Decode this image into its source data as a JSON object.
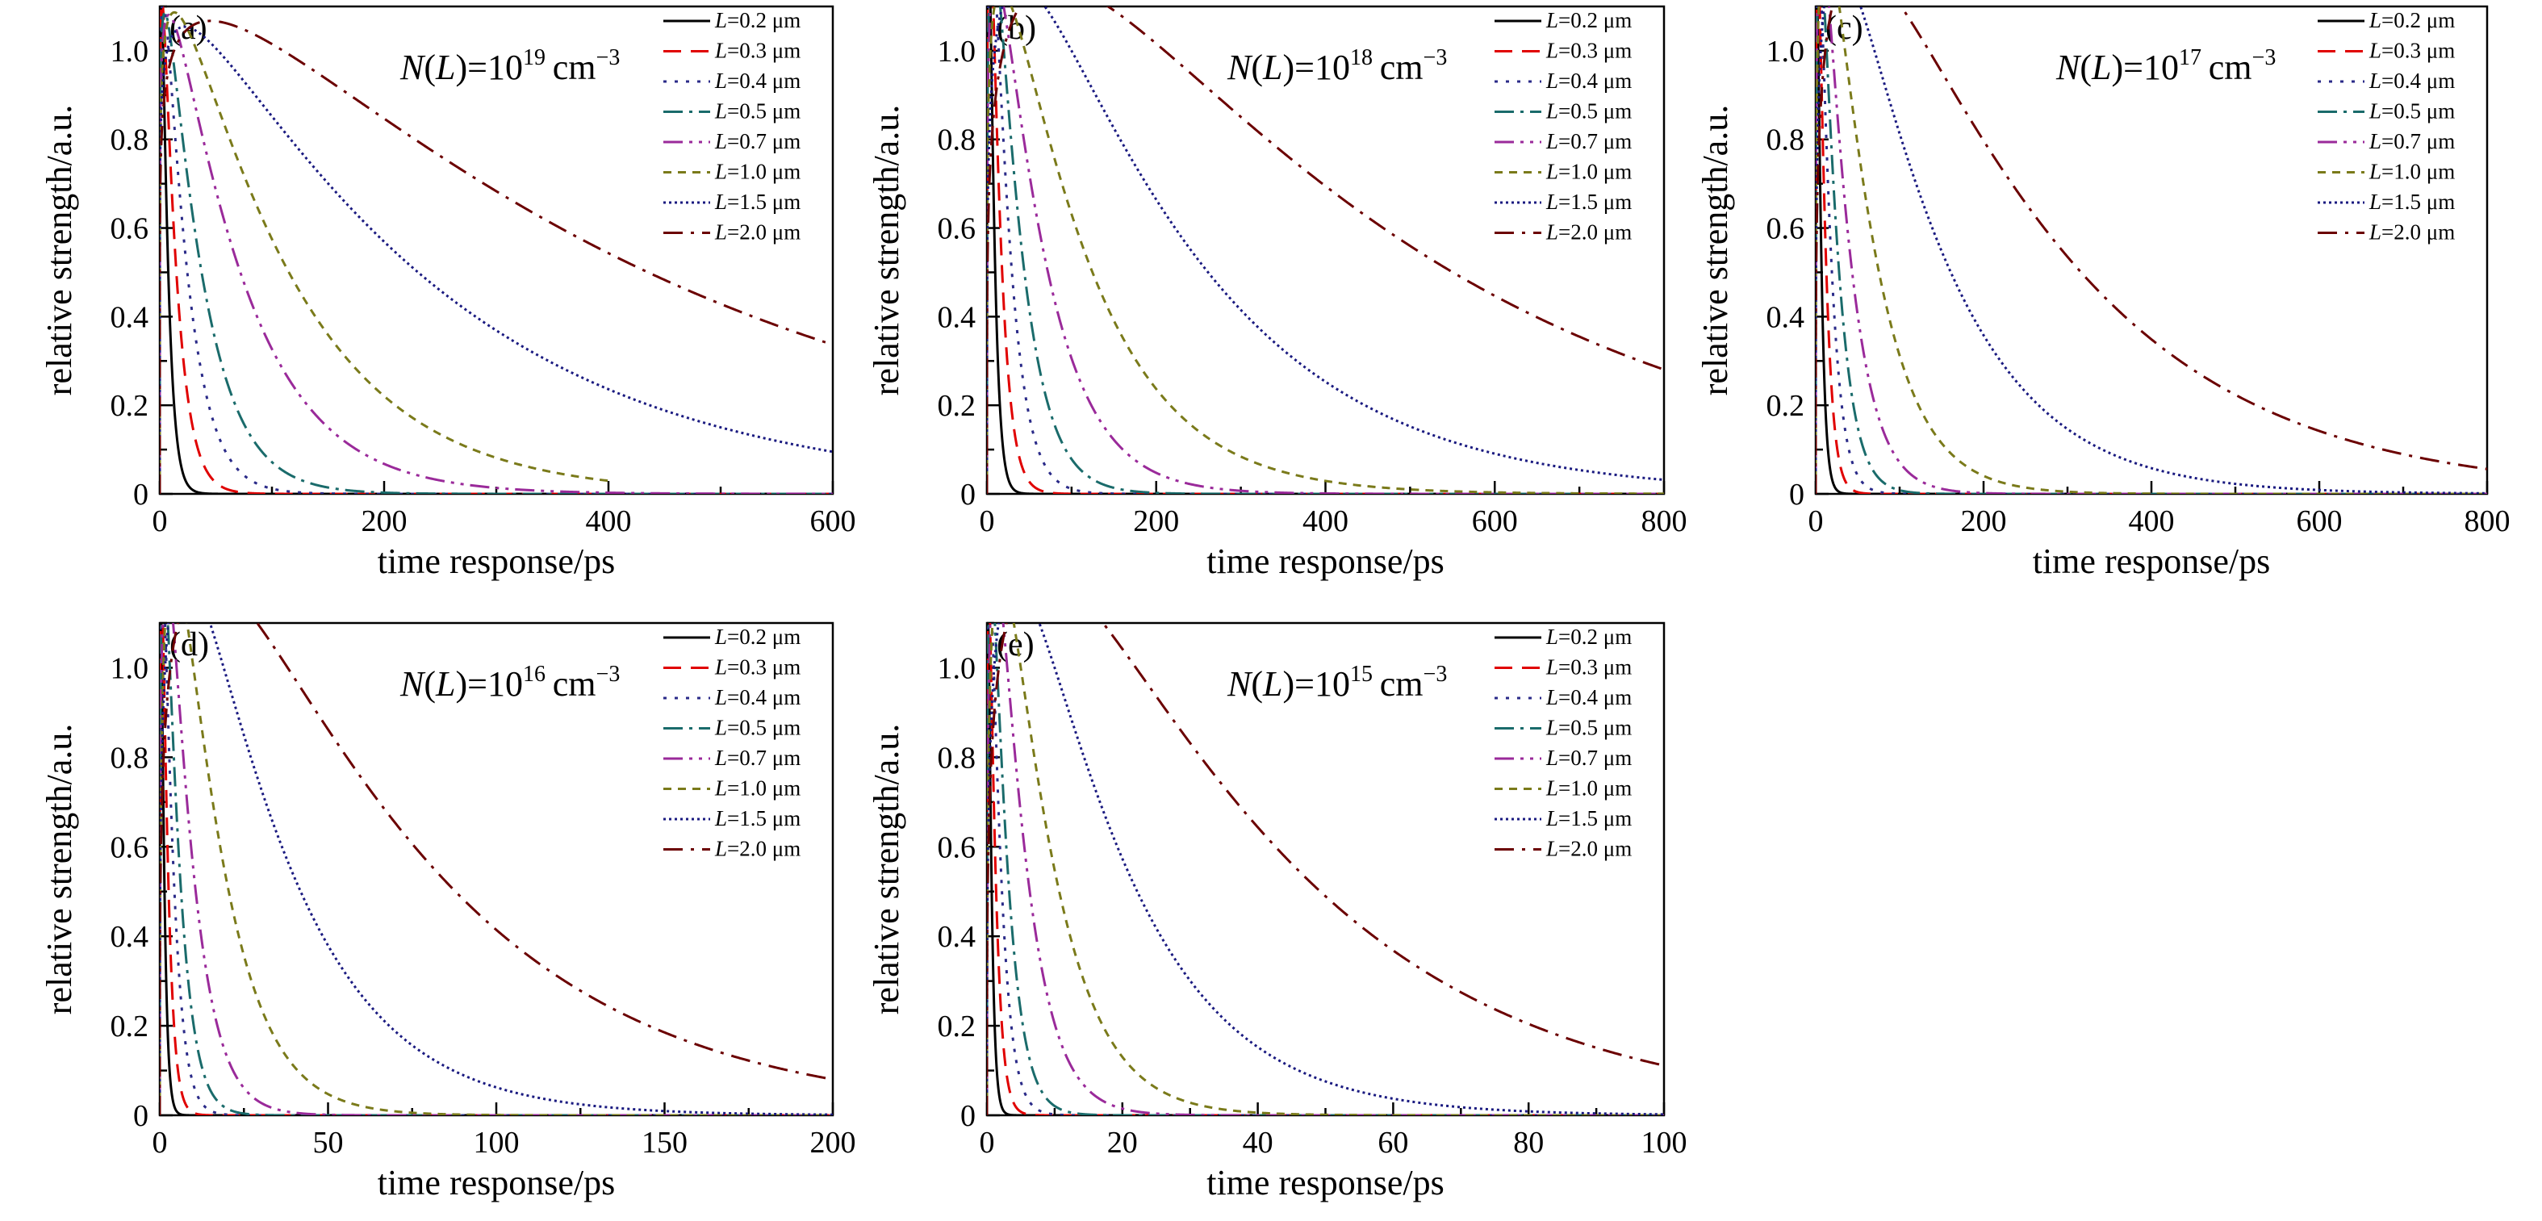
{
  "styles": [
    {
      "color": "#000000",
      "dash": ""
    },
    {
      "color": "#e00000",
      "dash": "22 12"
    },
    {
      "color": "#2a2a88",
      "dash": "4 10"
    },
    {
      "color": "#1a6b6b",
      "dash": "24 8 4 8"
    },
    {
      "color": "#9a2a9a",
      "dash": "24 8 4 8 4 8"
    },
    {
      "color": "#7a7a1a",
      "dash": "10 8"
    },
    {
      "color": "#1a1a80",
      "dash": "3 4"
    },
    {
      "color": "#6b0000",
      "dash": "24 10 4 10"
    }
  ],
  "chart_data": [
    {
      "type": "line",
      "panel_label": "(a)",
      "annotation": {
        "pre": "N",
        "open": "(",
        "mid": "L",
        "close": ")=10",
        "sup": "19",
        "post": "cm",
        "unit_sup": "−3"
      },
      "xlabel": "time response/ps",
      "ylabel": "relative strength/a.u.",
      "xlim": [
        0,
        600
      ],
      "ylim": [
        0,
        1.1
      ],
      "xticks": [
        "0",
        "200",
        "400",
        "600"
      ],
      "yticks": [
        "0",
        "0.2",
        "0.4",
        "0.6",
        "0.8",
        "1.0"
      ],
      "series": [
        {
          "name": "L=0.2 μm",
          "peak": 3,
          "tau_rise": 1.2,
          "tau_decay": 5,
          "x_end": 600
        },
        {
          "name": "L=0.3 μm",
          "peak": 5,
          "tau_rise": 2.0,
          "tau_decay": 11,
          "x_end": 600
        },
        {
          "name": "L=0.4 μm",
          "peak": 8,
          "tau_rise": 3.0,
          "tau_decay": 19,
          "x_end": 600
        },
        {
          "name": "L=0.5 μm",
          "peak": 11,
          "tau_rise": 4.5,
          "tau_decay": 30,
          "x_end": 600
        },
        {
          "name": "L=0.7 μm",
          "peak": 20,
          "tau_rise": 8,
          "tau_decay": 60,
          "x_end": 600
        },
        {
          "name": "L=1.0 μm",
          "peak": 33,
          "tau_rise": 13,
          "tau_decay": 95,
          "x_end": 400
        },
        {
          "name": "L=1.5 μm",
          "peak": 52,
          "tau_rise": 22,
          "tau_decay": 210,
          "x_end": 600
        },
        {
          "name": "L=2.0 μm",
          "peak": 110,
          "tau_rise": 45,
          "tau_decay": 380,
          "x_end": 600
        }
      ]
    },
    {
      "type": "line",
      "panel_label": "(b)",
      "annotation": {
        "pre": "N",
        "open": "(",
        "mid": "L",
        "close": ")=10",
        "sup": "18",
        "post": "cm",
        "unit_sup": "−3"
      },
      "xlabel": "time response/ps",
      "ylabel": "relative strength/a.u.",
      "xlim": [
        0,
        800
      ],
      "ylim": [
        0,
        1.1
      ],
      "xticks": [
        "0",
        "200",
        "400",
        "600",
        "800"
      ],
      "yticks": [
        "0",
        "0.2",
        "0.4",
        "0.6",
        "0.8",
        "1.0"
      ],
      "series": [
        {
          "name": "L=0.2 μm",
          "peak": 5,
          "tau_rise": 2,
          "tau_decay": 5,
          "x_end": 800
        },
        {
          "name": "L=0.3 μm",
          "peak": 9,
          "tau_rise": 3,
          "tau_decay": 10,
          "x_end": 800
        },
        {
          "name": "L=0.4 μm",
          "peak": 14,
          "tau_rise": 5,
          "tau_decay": 17,
          "x_end": 800
        },
        {
          "name": "L=0.5 μm",
          "peak": 20,
          "tau_rise": 7,
          "tau_decay": 27,
          "x_end": 800
        },
        {
          "name": "L=0.7 μm",
          "peak": 28,
          "tau_rise": 10,
          "tau_decay": 50,
          "x_end": 800
        },
        {
          "name": "L=1.0 μm",
          "peak": 45,
          "tau_rise": 17,
          "tau_decay": 90,
          "x_end": 800
        },
        {
          "name": "L=1.5 μm",
          "peak": 100,
          "tau_rise": 38,
          "tau_decay": 180,
          "x_end": 800
        },
        {
          "name": "L=2.0 μm",
          "peak": 210,
          "tau_rise": 80,
          "tau_decay": 380,
          "x_end": 800
        }
      ]
    },
    {
      "type": "line",
      "panel_label": "(c)",
      "annotation": {
        "pre": "N",
        "open": "(",
        "mid": "L",
        "close": ")=10",
        "sup": "17",
        "post": "cm",
        "unit_sup": "−3"
      },
      "xlabel": "time response/ps",
      "ylabel": "relative strength/a.u.",
      "xlim": [
        0,
        800
      ],
      "ylim": [
        0,
        1.1
      ],
      "xticks": [
        "0",
        "200",
        "400",
        "600",
        "800"
      ],
      "yticks": [
        "0",
        "0.2",
        "0.4",
        "0.6",
        "0.8",
        "1.0"
      ],
      "series": [
        {
          "name": "L=0.2 μm",
          "peak": 3,
          "tau_rise": 1.5,
          "tau_decay": 4,
          "x_end": 800
        },
        {
          "name": "L=0.3 μm",
          "peak": 6,
          "tau_rise": 2.5,
          "tau_decay": 7,
          "x_end": 800
        },
        {
          "name": "L=0.4 μm",
          "peak": 9,
          "tau_rise": 3.5,
          "tau_decay": 11,
          "x_end": 800
        },
        {
          "name": "L=0.5 μm",
          "peak": 13,
          "tau_rise": 5,
          "tau_decay": 16,
          "x_end": 800
        },
        {
          "name": "L=0.7 μm",
          "peak": 20,
          "tau_rise": 7,
          "tau_decay": 26,
          "x_end": 800
        },
        {
          "name": "L=1.0 μm",
          "peak": 35,
          "tau_rise": 12,
          "tau_decay": 45,
          "x_end": 800
        },
        {
          "name": "L=1.5 μm",
          "peak": 70,
          "tau_rise": 26,
          "tau_decay": 100,
          "x_end": 800
        },
        {
          "name": "L=2.0 μm",
          "peak": 135,
          "tau_rise": 50,
          "tau_decay": 200,
          "x_end": 800
        }
      ]
    },
    {
      "type": "line",
      "panel_label": "(d)",
      "annotation": {
        "pre": "N",
        "open": "(",
        "mid": "L",
        "close": ")=10",
        "sup": "16",
        "post": "cm",
        "unit_sup": "−3"
      },
      "xlabel": "time response/ps",
      "ylabel": "relative strength/a.u.",
      "xlim": [
        0,
        200
      ],
      "ylim": [
        0,
        1.1
      ],
      "xticks": [
        "0",
        "50",
        "100",
        "150",
        "200"
      ],
      "yticks": [
        "0",
        "0.2",
        "0.4",
        "0.6",
        "0.8",
        "1.0"
      ],
      "series": [
        {
          "name": "L=0.2 μm",
          "peak": 0.6,
          "tau_rise": 0.3,
          "tau_decay": 0.8,
          "x_end": 200
        },
        {
          "name": "L=0.3 μm",
          "peak": 1.2,
          "tau_rise": 0.5,
          "tau_decay": 1.5,
          "x_end": 200
        },
        {
          "name": "L=0.4 μm",
          "peak": 2,
          "tau_rise": 0.8,
          "tau_decay": 2.5,
          "x_end": 200
        },
        {
          "name": "L=0.5 μm",
          "peak": 3,
          "tau_rise": 1.2,
          "tau_decay": 3.5,
          "x_end": 200
        },
        {
          "name": "L=0.7 μm",
          "peak": 5,
          "tau_rise": 2,
          "tau_decay": 6,
          "x_end": 200
        },
        {
          "name": "L=1.0 μm",
          "peak": 10,
          "tau_rise": 4,
          "tau_decay": 11,
          "x_end": 200
        },
        {
          "name": "L=1.5 μm",
          "peak": 19,
          "tau_rise": 7,
          "tau_decay": 25,
          "x_end": 200
        },
        {
          "name": "L=2.0 μm",
          "peak": 38,
          "tau_rise": 14,
          "tau_decay": 55,
          "x_end": 200
        }
      ]
    },
    {
      "type": "line",
      "panel_label": "(e)",
      "annotation": {
        "pre": "N",
        "open": "(",
        "mid": "L",
        "close": ")=10",
        "sup": "15",
        "post": "cm",
        "unit_sup": "−3"
      },
      "xlabel": "time response/ps",
      "ylabel": "relative strength/a.u.",
      "xlim": [
        0,
        100
      ],
      "ylim": [
        0,
        1.1
      ],
      "xticks": [
        "0",
        "20",
        "40",
        "60",
        "80",
        "100"
      ],
      "yticks": [
        "0",
        "0.2",
        "0.4",
        "0.6",
        "0.8",
        "1.0"
      ],
      "series": [
        {
          "name": "L=0.2 μm",
          "peak": 0.3,
          "tau_rise": 0.15,
          "tau_decay": 0.4,
          "x_end": 100
        },
        {
          "name": "L=0.3 μm",
          "peak": 0.6,
          "tau_rise": 0.25,
          "tau_decay": 0.8,
          "x_end": 100
        },
        {
          "name": "L=0.4 μm",
          "peak": 1,
          "tau_rise": 0.4,
          "tau_decay": 1.3,
          "x_end": 100
        },
        {
          "name": "L=0.5 μm",
          "peak": 1.5,
          "tau_rise": 0.6,
          "tau_decay": 1.9,
          "x_end": 100
        },
        {
          "name": "L=0.7 μm",
          "peak": 3,
          "tau_rise": 1.2,
          "tau_decay": 3.5,
          "x_end": 100
        },
        {
          "name": "L=1.0 μm",
          "peak": 5,
          "tau_rise": 2,
          "tau_decay": 6,
          "x_end": 100
        },
        {
          "name": "L=1.5 μm",
          "peak": 10,
          "tau_rise": 4,
          "tau_decay": 13,
          "x_end": 100
        },
        {
          "name": "L=2.0 μm",
          "peak": 22,
          "tau_rise": 8,
          "tau_decay": 30,
          "x_end": 100
        }
      ]
    }
  ]
}
